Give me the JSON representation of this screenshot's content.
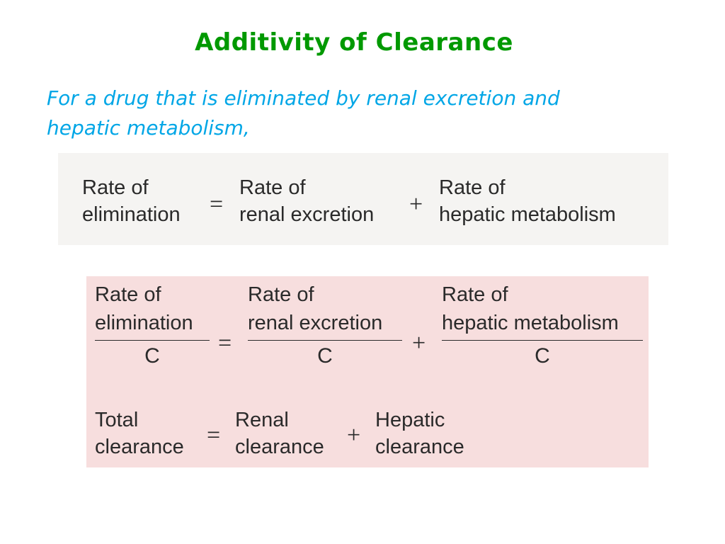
{
  "title": "Additivity of Clearance",
  "intro": {
    "line1": "For a drug that is eliminated by renal excretion and",
    "line2": "hepatic metabolism,"
  },
  "equation1": {
    "lhs": [
      "Rate of",
      "elimination"
    ],
    "eq": "=",
    "term1": [
      "Rate of",
      "renal excretion"
    ],
    "plus": "+",
    "term2": [
      "Rate of",
      "hepatic metabolism"
    ]
  },
  "equation2": {
    "lhs": [
      "Rate of",
      "elimination"
    ],
    "lhs_den": "C",
    "eq": "=",
    "term1": [
      "Rate of",
      "renal excretion"
    ],
    "term1_den": "C",
    "plus": "+",
    "term2": [
      "Rate of",
      "hepatic metabolism"
    ],
    "term2_den": "C"
  },
  "equation3": {
    "lhs": [
      "Total",
      "clearance"
    ],
    "eq": "=",
    "term1": [
      "Renal",
      "clearance"
    ],
    "plus": "+",
    "term2": [
      "Hepatic",
      "clearance"
    ]
  }
}
